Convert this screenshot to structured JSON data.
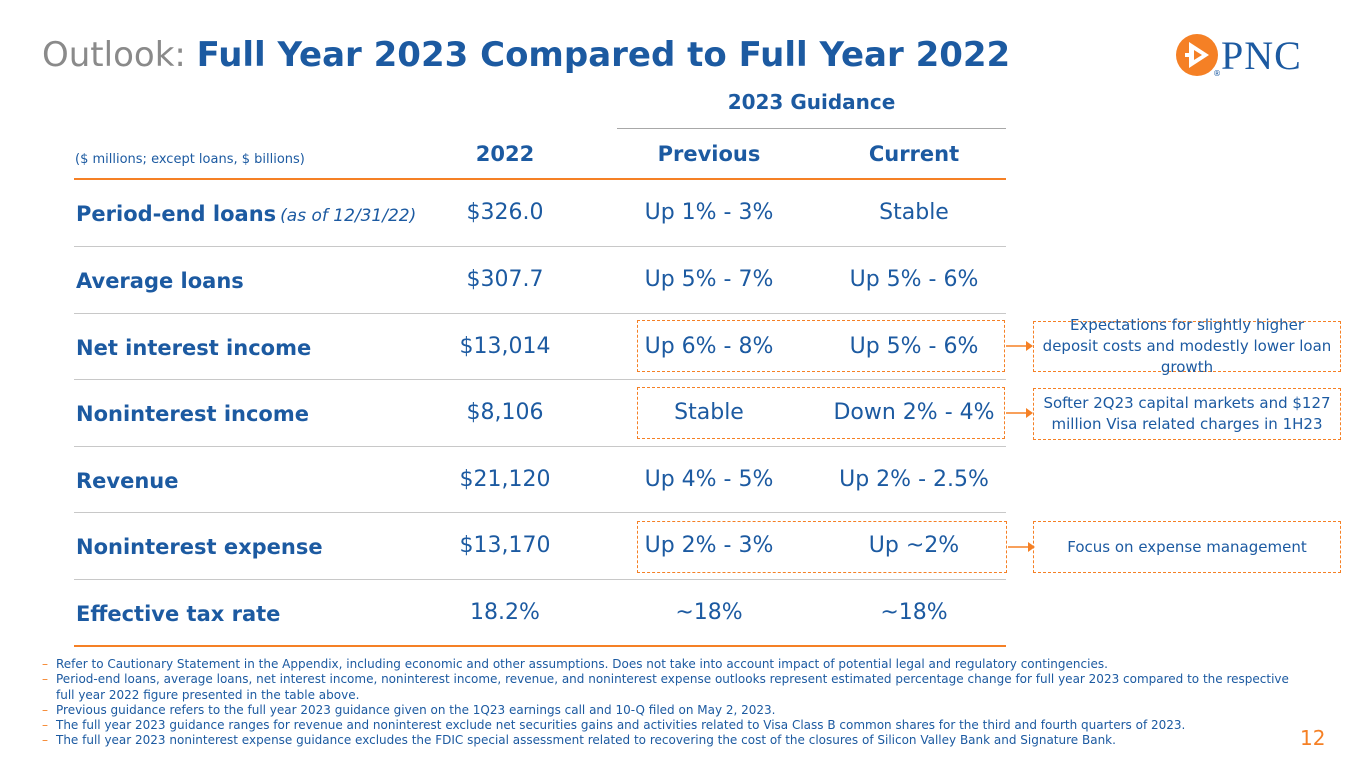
{
  "title": {
    "lead": "Outlook:",
    "main": "Full Year 2023 Compared to Full Year 2022"
  },
  "logo": {
    "text": "PNC",
    "mark": "®",
    "icon": "pnc-logo-icon"
  },
  "table": {
    "units_note": "($ millions; except loans, $ billions)",
    "guidance_header": "2023 Guidance",
    "columns": {
      "y2022": "2022",
      "previous": "Previous",
      "current": "Current"
    },
    "rows": [
      {
        "label": "Period-end loans",
        "note": "(as of 12/31/22)",
        "v2022": "$326.0",
        "previous": "Up 1% - 3%",
        "current": "Stable"
      },
      {
        "label": "Average loans",
        "note": "",
        "v2022": "$307.7",
        "previous": "Up 5% - 7%",
        "current": "Up 5% - 6%"
      },
      {
        "label": "Net interest income",
        "note": "",
        "v2022": "$13,014",
        "previous": "Up 6% - 8%",
        "current": "Up 5% - 6%"
      },
      {
        "label": "Noninterest income",
        "note": "",
        "v2022": "$8,106",
        "previous": "Stable",
        "current": "Down 2% - 4%"
      },
      {
        "label": "Revenue",
        "note": "",
        "v2022": "$21,120",
        "previous": "Up 4% - 5%",
        "current": "Up 2% - 2.5%"
      },
      {
        "label": "Noninterest expense",
        "note": "",
        "v2022": "$13,170",
        "previous": "Up 2% - 3%",
        "current": "Up ~2%"
      },
      {
        "label": "Effective tax rate",
        "note": "",
        "v2022": "18.2%",
        "previous": "~18%",
        "current": "~18%"
      }
    ]
  },
  "callouts": {
    "nii": "Expectations for slightly higher deposit costs and modestly lower loan growth",
    "noninterest_income": "Softer 2Q23 capital markets and $127 million Visa related charges in 1H23",
    "expense": "Focus on expense management"
  },
  "footnotes": [
    "Refer to Cautionary Statement in the Appendix, including economic and other assumptions. Does not take into account impact of potential legal and regulatory contingencies.",
    "Period-end loans, average loans, net interest income, noninterest income, revenue, and noninterest expense outlooks represent estimated percentage change for full year 2023 compared to the respective full year 2022 figure presented in the table above.",
    "Previous guidance refers to the full year 2023 guidance given on the 1Q23 earnings call and 10-Q filed on May 2, 2023.",
    "The full year 2023 guidance ranges for revenue and noninterest exclude net securities gains and activities related to Visa Class B common shares for the third and fourth quarters of 2023.",
    "The full year 2023 noninterest expense guidance excludes the FDIC special assessment related to recovering the cost of the closures of Silicon Valley Bank and Signature Bank."
  ],
  "page_number": "12",
  "colors": {
    "brand_blue": "#1c5aa1",
    "brand_orange": "#f58025",
    "title_gray": "#8a8a8a"
  }
}
